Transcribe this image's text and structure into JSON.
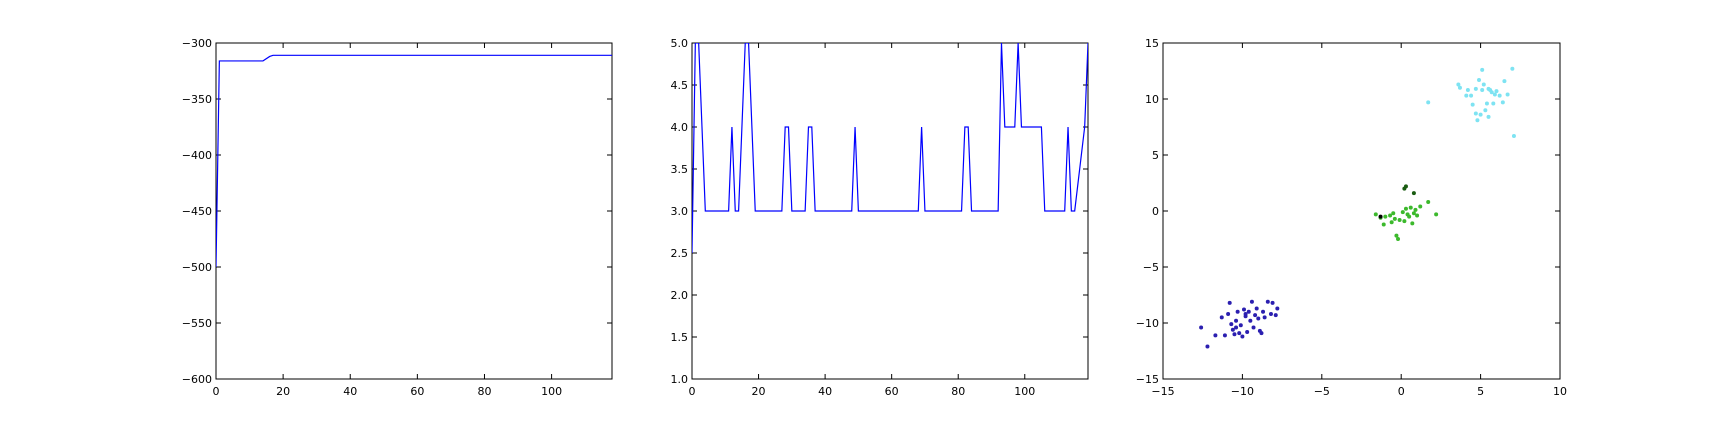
{
  "chart_data": [
    {
      "type": "line",
      "title": "",
      "xlabel": "",
      "ylabel": "",
      "xlim": [
        0,
        118
      ],
      "ylim": [
        -600,
        -300
      ],
      "xticks": [
        0,
        20,
        40,
        60,
        80,
        100
      ],
      "yticks": [
        -600,
        -550,
        -500,
        -450,
        -400,
        -350,
        -300
      ],
      "grid": false,
      "color": "#0000ff",
      "x": [
        0,
        1,
        2,
        14,
        16,
        17,
        118
      ],
      "y": [
        -500,
        -316,
        -316,
        -316,
        -312,
        -311,
        -311
      ]
    },
    {
      "type": "line",
      "title": "",
      "xlabel": "",
      "ylabel": "",
      "xlim": [
        0,
        119
      ],
      "ylim": [
        1.0,
        5.0
      ],
      "xticks": [
        0,
        20,
        40,
        60,
        80,
        100
      ],
      "yticks": [
        1.0,
        1.5,
        2.0,
        2.5,
        3.0,
        3.5,
        4.0,
        4.5,
        5.0
      ],
      "grid": false,
      "color": "#0000ff",
      "x": [
        0,
        1,
        2,
        3,
        4,
        5,
        11,
        12,
        13,
        14,
        15,
        16,
        17,
        18,
        19,
        20,
        27,
        28,
        29,
        30,
        34,
        35,
        36,
        37,
        38,
        48,
        49,
        50,
        68,
        69,
        70,
        81,
        82,
        83,
        84,
        92,
        93,
        94,
        97,
        98,
        99,
        100,
        105,
        106,
        112,
        113,
        114,
        115,
        118,
        119
      ],
      "y": [
        2.5,
        5.0,
        5.0,
        4.0,
        3.0,
        3.0,
        3.0,
        4.0,
        3.0,
        3.0,
        4.0,
        5.0,
        5.0,
        4.0,
        3.0,
        3.0,
        3.0,
        4.0,
        4.0,
        3.0,
        3.0,
        4.0,
        4.0,
        3.0,
        3.0,
        3.0,
        4.0,
        3.0,
        3.0,
        4.0,
        3.0,
        3.0,
        4.0,
        4.0,
        3.0,
        3.0,
        5.0,
        4.0,
        4.0,
        5.0,
        4.0,
        4.0,
        4.0,
        3.0,
        3.0,
        4.0,
        3.0,
        3.0,
        4.0,
        5.0
      ]
    },
    {
      "type": "scatter",
      "title": "",
      "xlabel": "",
      "ylabel": "",
      "xlim": [
        -15,
        10
      ],
      "ylim": [
        -15,
        15
      ],
      "xticks": [
        -15,
        -10,
        -5,
        0,
        5,
        10
      ],
      "yticks": [
        -15,
        -10,
        -5,
        0,
        5,
        10,
        15
      ],
      "grid": false,
      "series": [
        {
          "color": "#2b1fb0",
          "points": [
            [
              -12.6,
              -10.4
            ],
            [
              -12.2,
              -12.1
            ],
            [
              -11.7,
              -11.1
            ],
            [
              -11.3,
              -9.5
            ],
            [
              -11.1,
              -11.1
            ],
            [
              -10.9,
              -9.2
            ],
            [
              -10.8,
              -8.2
            ],
            [
              -10.7,
              -10.1
            ],
            [
              -10.6,
              -10.6
            ],
            [
              -10.5,
              -11.0
            ],
            [
              -10.4,
              -9.8
            ],
            [
              -10.3,
              -9.0
            ],
            [
              -10.2,
              -10.9
            ],
            [
              -10.1,
              -10.2
            ],
            [
              -10.0,
              -11.2
            ],
            [
              -9.9,
              -8.8
            ],
            [
              -9.8,
              -9.4
            ],
            [
              -9.7,
              -10.8
            ],
            [
              -9.6,
              -9.0
            ],
            [
              -9.5,
              -9.8
            ],
            [
              -9.4,
              -8.1
            ],
            [
              -9.3,
              -10.4
            ],
            [
              -9.2,
              -9.3
            ],
            [
              -9.1,
              -8.7
            ],
            [
              -9.0,
              -9.6
            ],
            [
              -8.9,
              -10.7
            ],
            [
              -8.8,
              -10.9
            ],
            [
              -8.7,
              -9.0
            ],
            [
              -8.6,
              -9.5
            ],
            [
              -8.4,
              -8.1
            ],
            [
              -8.2,
              -9.2
            ],
            [
              -8.1,
              -8.2
            ],
            [
              -7.9,
              -9.3
            ],
            [
              -7.8,
              -8.7
            ],
            [
              -10.4,
              -10.4
            ],
            [
              -9.8,
              -9.2
            ]
          ]
        },
        {
          "color": "#3cb92c",
          "points": [
            [
              -1.6,
              -0.3
            ],
            [
              -1.3,
              -0.6
            ],
            [
              -1.1,
              -1.2
            ],
            [
              -1.0,
              -0.5
            ],
            [
              -0.7,
              -0.4
            ],
            [
              -0.5,
              -0.2
            ],
            [
              -0.4,
              -0.7
            ],
            [
              -0.3,
              -2.2
            ],
            [
              -0.2,
              -2.5
            ],
            [
              -0.1,
              -0.8
            ],
            [
              0.1,
              -0.1
            ],
            [
              0.2,
              -0.9
            ],
            [
              0.3,
              0.2
            ],
            [
              0.4,
              -0.3
            ],
            [
              0.5,
              -0.5
            ],
            [
              0.6,
              0.3
            ],
            [
              0.7,
              -1.1
            ],
            [
              0.8,
              -0.2
            ],
            [
              0.9,
              0.1
            ],
            [
              1.0,
              -0.4
            ],
            [
              1.2,
              0.4
            ],
            [
              1.7,
              0.8
            ],
            [
              2.2,
              -0.3
            ],
            [
              -0.6,
              -1.0
            ]
          ]
        },
        {
          "color": "#7ee3f2",
          "points": [
            [
              1.7,
              9.7
            ],
            [
              3.6,
              11.3
            ],
            [
              3.7,
              11.0
            ],
            [
              4.1,
              10.3
            ],
            [
              4.2,
              10.8
            ],
            [
              4.4,
              10.3
            ],
            [
              4.5,
              9.5
            ],
            [
              4.7,
              8.7
            ],
            [
              4.8,
              8.1
            ],
            [
              4.9,
              11.7
            ],
            [
              5.0,
              8.6
            ],
            [
              5.1,
              10.8
            ],
            [
              5.2,
              11.3
            ],
            [
              5.3,
              9.0
            ],
            [
              5.4,
              9.6
            ],
            [
              5.5,
              8.4
            ],
            [
              5.6,
              10.8
            ],
            [
              5.7,
              10.6
            ],
            [
              5.8,
              9.6
            ],
            [
              5.9,
              10.4
            ],
            [
              6.0,
              10.7
            ],
            [
              6.2,
              10.3
            ],
            [
              6.4,
              9.7
            ],
            [
              6.5,
              11.6
            ],
            [
              6.7,
              10.4
            ],
            [
              7.0,
              12.7
            ],
            [
              7.1,
              6.7
            ],
            [
              5.1,
              12.6
            ],
            [
              4.7,
              10.9
            ],
            [
              5.5,
              10.9
            ]
          ]
        },
        {
          "color": "#1a5c12",
          "points": [
            [
              0.2,
              2.0
            ],
            [
              0.3,
              2.2
            ],
            [
              0.8,
              1.6
            ]
          ]
        },
        {
          "color": "#000000",
          "points": [
            [
              -1.3,
              -0.5
            ]
          ]
        }
      ]
    }
  ]
}
